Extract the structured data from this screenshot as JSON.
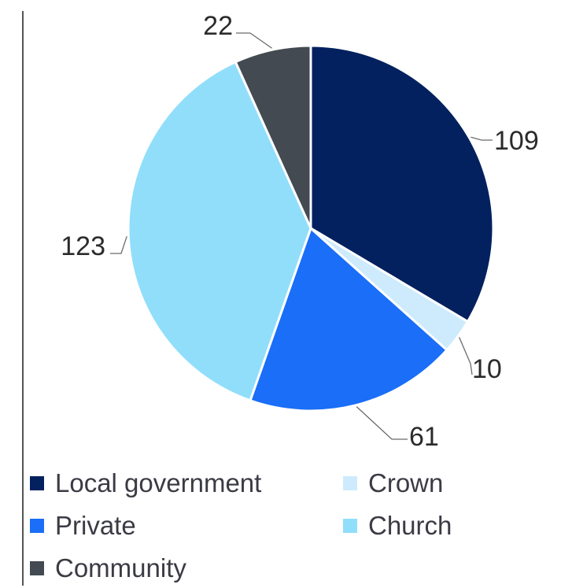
{
  "chart_data": {
    "type": "pie",
    "title": "",
    "slices": [
      {
        "name": "Local government",
        "value": 109,
        "color": "#03215F",
        "label": "109"
      },
      {
        "name": "Crown",
        "value": 10,
        "color": "#CDEBFD",
        "label": "10"
      },
      {
        "name": "Private",
        "value": 61,
        "color": "#1A6EF7",
        "label": "61"
      },
      {
        "name": "Church",
        "value": 123,
        "color": "#91DEFB",
        "label": "123"
      },
      {
        "name": "Community",
        "value": 22,
        "color": "#434A51",
        "label": "22"
      }
    ],
    "legend": [
      {
        "name": "Local government",
        "color": "#03215F"
      },
      {
        "name": "Crown",
        "color": "#CDEBFD"
      },
      {
        "name": "Private",
        "color": "#1A6EF7"
      },
      {
        "name": "Church",
        "color": "#91DEFB"
      },
      {
        "name": "Community",
        "color": "#434A51"
      }
    ],
    "legend_placement": "bottom"
  }
}
